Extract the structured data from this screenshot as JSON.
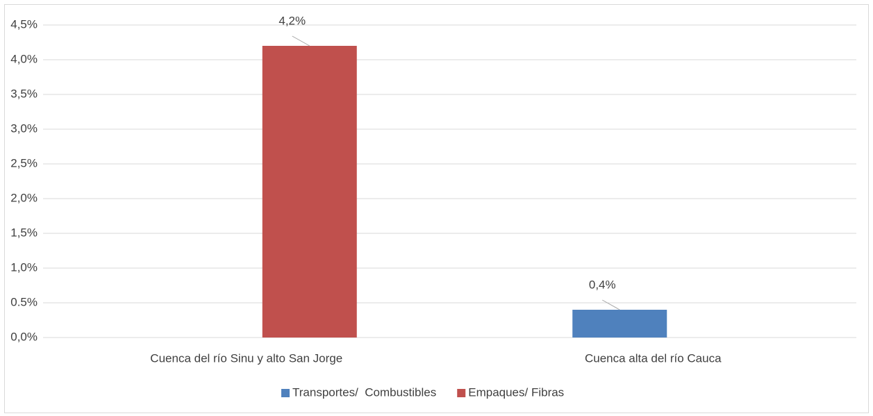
{
  "chart_data": {
    "type": "bar",
    "categories": [
      "Cuenca del río Sinu y alto San Jorge",
      "Cuenca alta del río Cauca"
    ],
    "series": [
      {
        "name": "Transportes/  Combustibles",
        "color": "#4f81bd",
        "values": [
          null,
          0.4
        ],
        "value_labels": [
          null,
          "0,4%"
        ]
      },
      {
        "name": "Empaques/ Fibras",
        "color": "#c0504d",
        "values": [
          4.2,
          null
        ],
        "value_labels": [
          "4,2%",
          null
        ]
      }
    ],
    "ylim": [
      0,
      4.5
    ],
    "yticks": [
      {
        "value": 0,
        "label": "0,0%"
      },
      {
        "value": 0.5,
        "label": "0.5%"
      },
      {
        "value": 1,
        "label": "1,0%"
      },
      {
        "value": 1.5,
        "label": "1,5%"
      },
      {
        "value": 2,
        "label": "2,0%"
      },
      {
        "value": 2.5,
        "label": "2,5%"
      },
      {
        "value": 3,
        "label": "3,0%"
      },
      {
        "value": 3.5,
        "label": "3,5%"
      },
      {
        "value": 4,
        "label": "4,0%"
      },
      {
        "value": 4.5,
        "label": "4,5%"
      }
    ],
    "grid": true,
    "legend": "bottom"
  }
}
